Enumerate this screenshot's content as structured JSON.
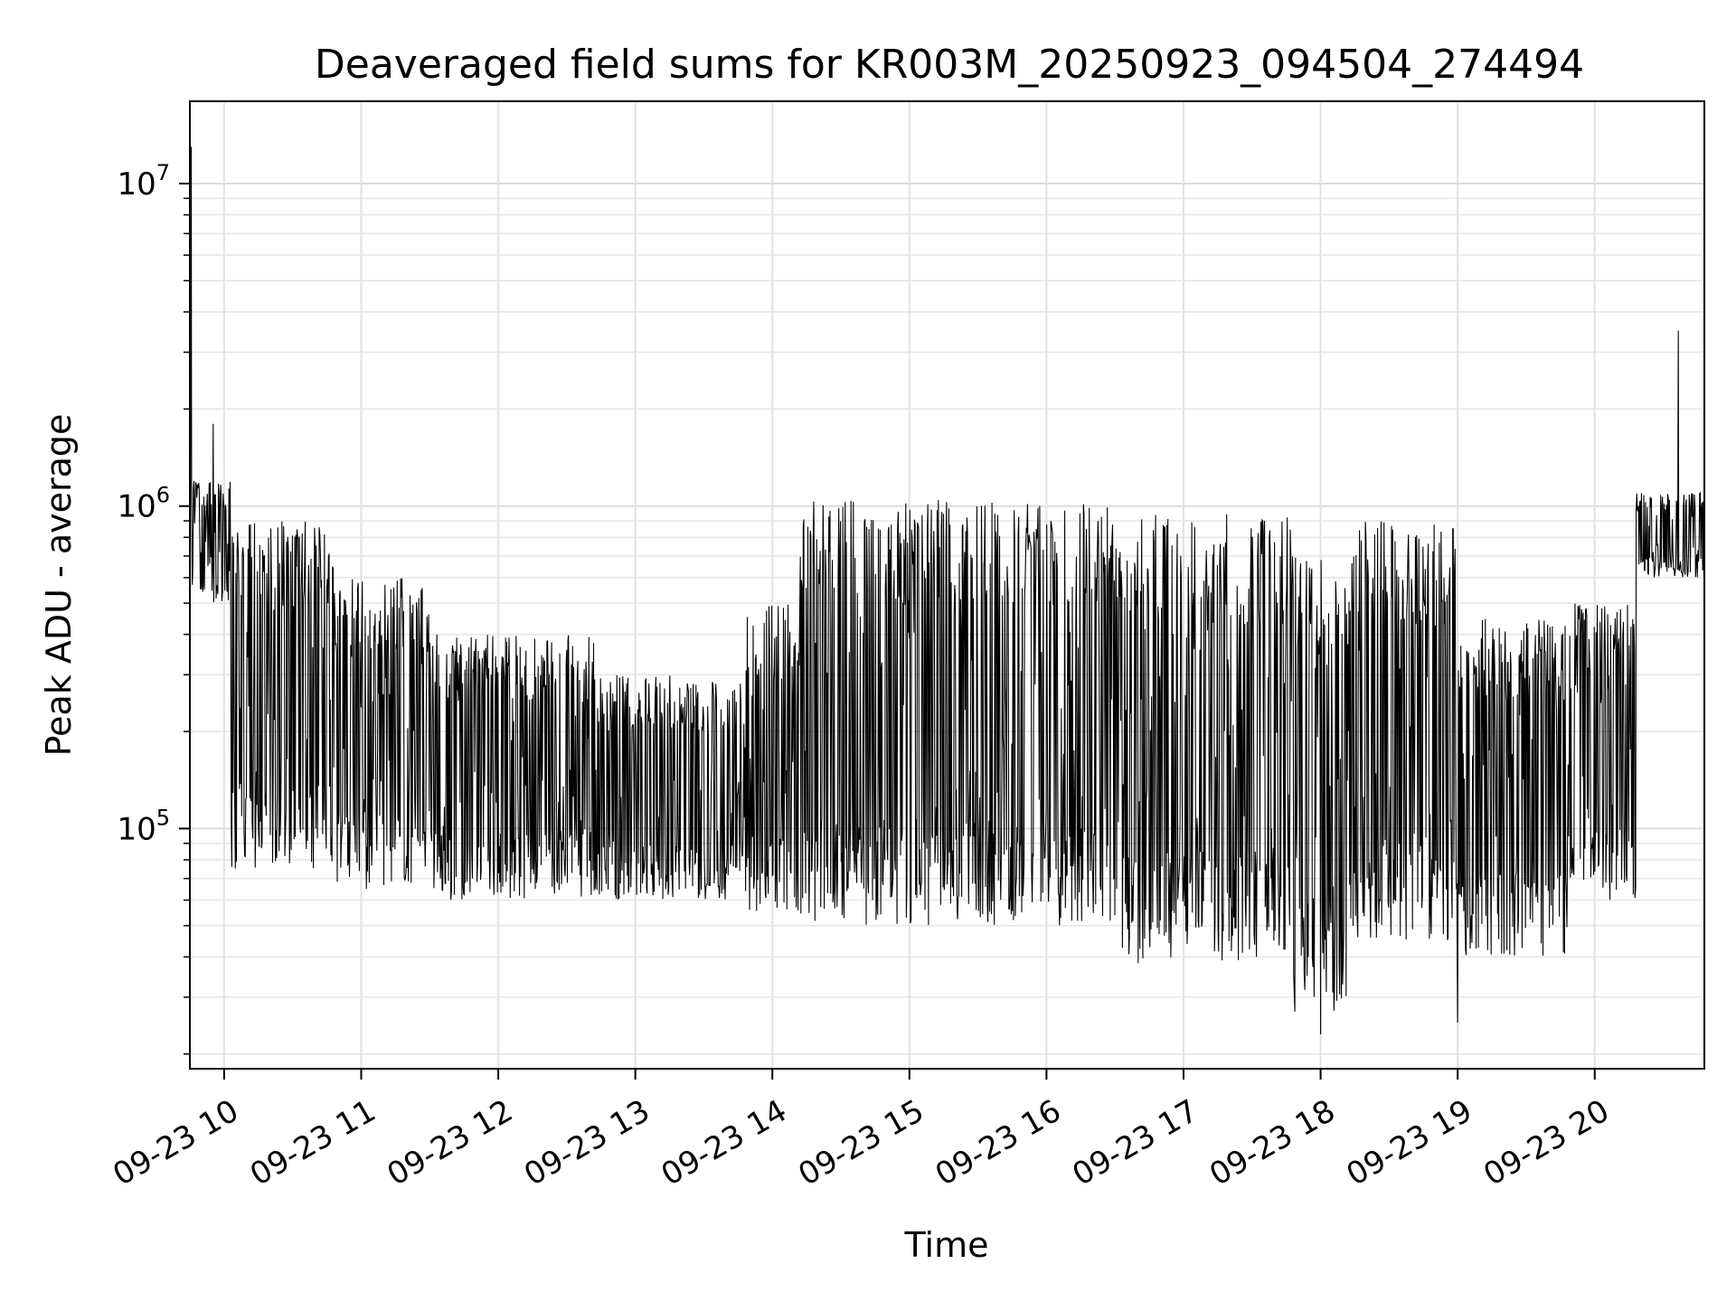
{
  "chart_data": {
    "type": "line",
    "title": "Deaveraged field sums for KR003M_20250923_094504_274494",
    "xlabel": "Time",
    "ylabel": "Peak ADU - average",
    "yscale": "log",
    "ylim": [
      18000,
      18000000
    ],
    "xlim_hours": [
      9.75,
      20.8
    ],
    "grid": true,
    "legend": "none",
    "line_color": "#000000",
    "x_ticks": [
      {
        "hour": 10,
        "label": "09-23 10"
      },
      {
        "hour": 11,
        "label": "09-23 11"
      },
      {
        "hour": 12,
        "label": "09-23 12"
      },
      {
        "hour": 13,
        "label": "09-23 13"
      },
      {
        "hour": 14,
        "label": "09-23 14"
      },
      {
        "hour": 15,
        "label": "09-23 15"
      },
      {
        "hour": 16,
        "label": "09-23 16"
      },
      {
        "hour": 17,
        "label": "09-23 17"
      },
      {
        "hour": 18,
        "label": "09-23 18"
      },
      {
        "hour": 19,
        "label": "09-23 19"
      },
      {
        "hour": 20,
        "label": "09-23 20"
      }
    ],
    "y_ticks": [
      {
        "value": 100000,
        "base": "10",
        "exp": "5"
      },
      {
        "value": 1000000,
        "base": "10",
        "exp": "6"
      },
      {
        "value": 10000000,
        "base": "10",
        "exp": "7"
      }
    ],
    "envelope_note": "Dense noisy series; per-segment typical low/high envelope (ADU) and notable spikes",
    "segments": [
      {
        "start": 9.75,
        "end": 10.05,
        "low": 500000,
        "high": 1200000
      },
      {
        "start": 10.05,
        "end": 10.8,
        "low": 75000,
        "high": 900000
      },
      {
        "start": 10.8,
        "end": 11.5,
        "low": 65000,
        "high": 600000
      },
      {
        "start": 11.5,
        "end": 12.7,
        "low": 60000,
        "high": 400000
      },
      {
        "start": 12.7,
        "end": 13.8,
        "low": 60000,
        "high": 300000
      },
      {
        "start": 13.8,
        "end": 14.2,
        "low": 55000,
        "high": 500000
      },
      {
        "start": 14.2,
        "end": 16.5,
        "low": 50000,
        "high": 1050000
      },
      {
        "start": 16.5,
        "end": 17.8,
        "low": 38000,
        "high": 950000
      },
      {
        "start": 17.8,
        "end": 18.2,
        "low": 27000,
        "high": 700000
      },
      {
        "start": 18.2,
        "end": 19.0,
        "low": 45000,
        "high": 900000
      },
      {
        "start": 19.0,
        "end": 19.8,
        "low": 40000,
        "high": 450000
      },
      {
        "start": 19.8,
        "end": 20.3,
        "low": 60000,
        "high": 500000
      },
      {
        "start": 20.3,
        "end": 20.8,
        "low": 600000,
        "high": 1100000
      }
    ],
    "spikes": [
      {
        "hour": 9.76,
        "value": 13000000
      },
      {
        "hour": 9.92,
        "value": 1800000
      },
      {
        "hour": 20.61,
        "value": 3500000
      },
      {
        "hour": 18.0,
        "value": 23000
      },
      {
        "hour": 19.0,
        "value": 25000
      }
    ]
  }
}
